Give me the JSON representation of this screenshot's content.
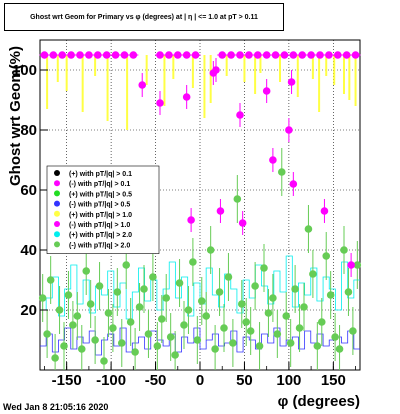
{
  "chart_data": {
    "type": "scatter",
    "title": "Ghost wrt Geom for Primary vs φ (degrees) at | η | <= 1.0 at pT > 0.11",
    "xlabel": "φ (degrees)",
    "ylabel": "Ghost wrt Geom(%)",
    "xlim": [
      -180,
      180
    ],
    "ylim": [
      0,
      110
    ],
    "grid": true,
    "legend_position": "left-center",
    "xticks": [
      -150,
      -100,
      -50,
      0,
      50,
      100,
      150
    ],
    "yticks": [
      20,
      40,
      60,
      80,
      100
    ],
    "legend": [
      {
        "label": "(+) with pT/|q| > 0.1",
        "color": "#000000"
      },
      {
        "label": "(-) with pT/|q| > 0.1",
        "color": "#ff00ff"
      },
      {
        "label": "(+) with pT/|q| > 0.5",
        "color": "#22dd22"
      },
      {
        "label": "(-) with pT/|q| > 0.5",
        "color": "#3333ff"
      },
      {
        "label": "(+) with pT/|q| > 1.0",
        "color": "#ffff44"
      },
      {
        "label": "(-) with pT/|q| > 1.0",
        "color": "#ff00ff"
      },
      {
        "label": "(+) with pT/|q| > 2.0",
        "color": "#00eeee"
      },
      {
        "label": "(-) with pT/|q| > 2.0",
        "color": "#66cc55"
      }
    ],
    "series_magenta_high": {
      "color": "#ff00ff",
      "x": [
        -175,
        -165,
        -155,
        -145,
        -135,
        -125,
        -115,
        -105,
        -95,
        -85,
        -75,
        -45,
        -35,
        -25,
        -15,
        -5,
        25,
        35,
        45,
        55,
        65,
        75,
        85,
        95,
        105,
        115,
        125,
        135,
        145,
        155,
        165,
        175
      ],
      "y": [
        105,
        105,
        105,
        105,
        105,
        105,
        105,
        105,
        105,
        105,
        105,
        105,
        105,
        105,
        105,
        105,
        105,
        105,
        105,
        105,
        105,
        105,
        105,
        105,
        105,
        105,
        105,
        105,
        105,
        105,
        105,
        105
      ]
    },
    "series_magenta_scattered": {
      "color": "#ff00ff",
      "x": [
        -65,
        -45,
        -15,
        -10,
        15,
        18,
        23,
        45,
        48,
        75,
        82,
        100,
        103,
        105,
        140,
        170
      ],
      "y": [
        95,
        89,
        91,
        50,
        99,
        100,
        53,
        85,
        49,
        93,
        70,
        80,
        96,
        62,
        53,
        35
      ]
    },
    "series_green": {
      "color": "#66cc55",
      "x": [
        -177,
        -172,
        -168,
        -163,
        -158,
        -153,
        -148,
        -143,
        -138,
        -133,
        -128,
        -123,
        -118,
        -113,
        -108,
        -103,
        -98,
        -93,
        -88,
        -83,
        -78,
        -73,
        -68,
        -63,
        -58,
        -53,
        -48,
        -43,
        -38,
        -33,
        -28,
        -23,
        -18,
        -13,
        -8,
        -3,
        2,
        7,
        12,
        17,
        22,
        27,
        32,
        37,
        42,
        47,
        52,
        57,
        62,
        67,
        72,
        77,
        82,
        87,
        92,
        97,
        102,
        107,
        112,
        117,
        122,
        127,
        132,
        137,
        142,
        147,
        152,
        157,
        162,
        167,
        172,
        177
      ],
      "y": [
        24,
        12,
        30,
        4,
        20,
        8,
        25,
        15,
        18,
        7,
        33,
        22,
        10,
        28,
        3,
        19,
        14,
        26,
        9,
        35,
        16,
        6,
        21,
        27,
        12,
        31,
        8,
        17,
        24,
        11,
        5,
        29,
        15,
        20,
        36,
        10,
        23,
        18,
        40,
        7,
        26,
        14,
        31,
        9,
        57,
        22,
        16,
        13,
        28,
        8,
        34,
        19,
        24,
        12,
        66,
        18,
        9,
        27,
        14,
        21,
        47,
        32,
        8,
        16,
        38,
        25,
        11,
        7,
        40,
        26,
        13,
        35
      ]
    }
  },
  "footer_timestamp": "Wed Jan  8 21:05:16 2020"
}
